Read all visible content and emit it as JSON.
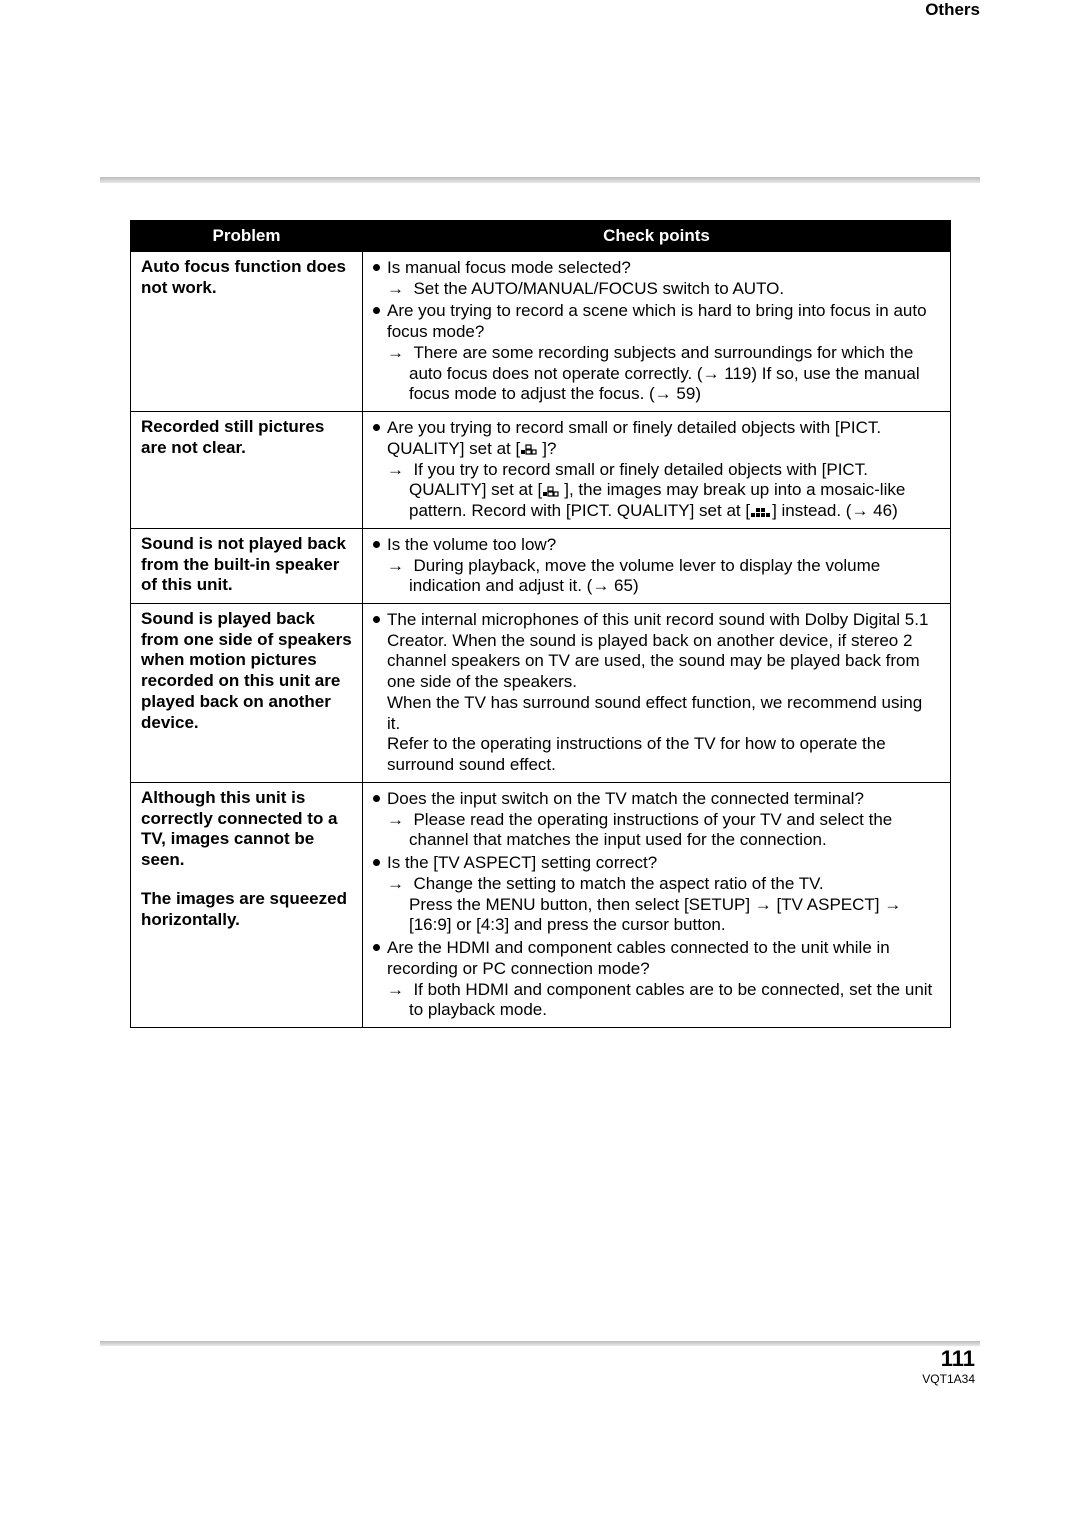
{
  "section_label": "Others",
  "table": {
    "headers": {
      "problem": "Problem",
      "check": "Check points"
    },
    "rows": [
      {
        "problem": "Auto focus function does not work.",
        "check": [
          {
            "type": "bullet",
            "text": "Is manual focus mode selected?"
          },
          {
            "type": "sub",
            "text": "Set the AUTO/MANUAL/FOCUS switch to AUTO."
          },
          {
            "type": "bullet",
            "text": "Are you trying to record a scene which is hard to bring into focus in auto focus mode?"
          },
          {
            "type": "sub",
            "text": "There are some recording subjects and surroundings for which the auto focus does not operate correctly. (→ 119) If so, use the manual focus mode to adjust the focus. (→ 59)"
          }
        ]
      },
      {
        "problem": "Recorded still pictures are not clear.",
        "check": [
          {
            "type": "bullet",
            "text": "Are you trying to record small or finely detailed objects with [PICT. QUALITY] set at [",
            "icon": "low",
            "tail": "]?"
          },
          {
            "type": "sub",
            "text": "If you try to record small or finely detailed objects with [PICT. QUALITY] set at [",
            "icon": "low",
            "tail": "], the images may break up into a mosaic-like pattern. Record with [PICT. QUALITY] set at [",
            "icon2": "high",
            "tail2": "] instead. (→ 46)"
          }
        ]
      },
      {
        "problem": "Sound is not played back from the built-in speaker of this unit.",
        "check": [
          {
            "type": "bullet",
            "text": "Is the volume too low?"
          },
          {
            "type": "sub",
            "text": "During playback, move the volume lever to display the volume indication and adjust it. (→ 65)"
          }
        ]
      },
      {
        "problem": "Sound is played back from one side of speakers when motion pictures recorded on this unit are played back on another device.",
        "check": [
          {
            "type": "bullet",
            "text": "The internal microphones of this unit record sound with Dolby Digital 5.1 Creator. When the sound is played back on another device, if stereo 2 channel speakers on TV are used, the sound may be played back from one side of the speakers."
          },
          {
            "type": "plain",
            "text": "When the TV has surround sound effect function, we recommend using it."
          },
          {
            "type": "plain",
            "text": "Refer to the operating instructions of the TV for how to operate the surround sound effect."
          }
        ]
      },
      {
        "problem_lines": [
          "Although this unit is correctly connected to a TV, images cannot be seen.",
          "",
          "The images are squeezed horizontally."
        ],
        "check": [
          {
            "type": "bullet",
            "text": "Does the input switch on the TV match the connected terminal?"
          },
          {
            "type": "sub",
            "text": "Please read the operating instructions of your TV and select the channel that matches the input used for the connection."
          },
          {
            "type": "bullet",
            "text": "Is the [TV ASPECT] setting correct?"
          },
          {
            "type": "sub",
            "text": "Change the setting to match the aspect ratio of the TV."
          },
          {
            "type": "plain-indent",
            "text": "Press the MENU button, then select [SETUP] → [TV ASPECT] → [16:9] or [4:3] and press the cursor button."
          },
          {
            "type": "bullet",
            "text": "Are the HDMI and component cables connected to the unit while in recording or PC connection mode?"
          },
          {
            "type": "sub",
            "text": "If both HDMI and component cables are to be connected, set the unit to playback mode."
          }
        ]
      }
    ]
  },
  "page_number": "111",
  "doc_code": "VQT1A34",
  "colors": {
    "header_bg": "#000000",
    "header_fg": "#ffffff",
    "border": "#000000",
    "page_bg": "#ffffff",
    "rule": "#bcbcbc"
  }
}
